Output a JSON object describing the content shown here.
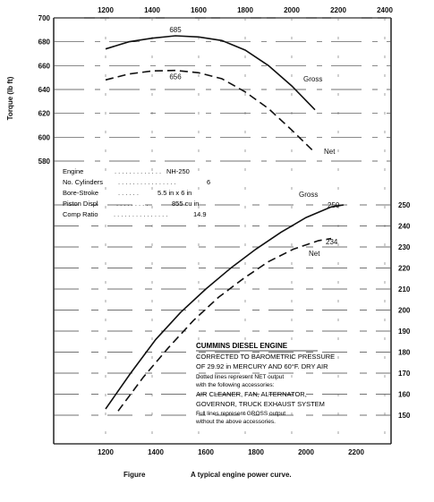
{
  "chart_data": {
    "type": "line",
    "x_ticks_top": [
      "1200",
      "1400",
      "1600",
      "1800",
      "2000",
      "2200",
      "2400"
    ],
    "x_ticks_bottom": [
      "1200",
      "1400",
      "1600",
      "1800",
      "2000",
      "2200"
    ],
    "torque_axis": {
      "label": "Torque (lb ft)",
      "ticks": [
        "700",
        "680",
        "660",
        "640",
        "620",
        "600",
        "580"
      ],
      "range": [
        580,
        700
      ]
    },
    "power_axis": {
      "ticks": [
        "250",
        "240",
        "230",
        "220",
        "210",
        "200",
        "190",
        "180",
        "170",
        "160",
        "150"
      ],
      "range": [
        150,
        250
      ]
    },
    "series": [
      {
        "name": "Gross",
        "axis": "torque",
        "style": "solid",
        "points": [
          [
            1200,
            674
          ],
          [
            1300,
            680
          ],
          [
            1400,
            683
          ],
          [
            1500,
            685
          ],
          [
            1600,
            684
          ],
          [
            1700,
            681
          ],
          [
            1800,
            673
          ],
          [
            1900,
            660
          ],
          [
            2000,
            643
          ],
          [
            2100,
            623
          ]
        ]
      },
      {
        "name": "Net",
        "axis": "torque",
        "style": "dashed",
        "points": [
          [
            1200,
            648
          ],
          [
            1300,
            653
          ],
          [
            1400,
            655.5
          ],
          [
            1500,
            656
          ],
          [
            1600,
            654
          ],
          [
            1700,
            649
          ],
          [
            1800,
            638
          ],
          [
            1900,
            624
          ],
          [
            2000,
            606
          ],
          [
            2100,
            587
          ]
        ]
      },
      {
        "name": "Gross",
        "axis": "power",
        "style": "solid",
        "points": [
          [
            1200,
            153
          ],
          [
            1300,
            170
          ],
          [
            1400,
            186
          ],
          [
            1500,
            199
          ],
          [
            1600,
            210
          ],
          [
            1700,
            220
          ],
          [
            1800,
            229
          ],
          [
            1900,
            237
          ],
          [
            2000,
            244
          ],
          [
            2100,
            249
          ],
          [
            2150,
            250
          ]
        ]
      },
      {
        "name": "Net",
        "axis": "power",
        "style": "dashed",
        "points": [
          [
            1250,
            152
          ],
          [
            1350,
            168
          ],
          [
            1450,
            182
          ],
          [
            1550,
            195
          ],
          [
            1650,
            206
          ],
          [
            1750,
            215
          ],
          [
            1850,
            223
          ],
          [
            1950,
            229
          ],
          [
            2050,
            233
          ],
          [
            2100,
            234
          ]
        ]
      }
    ],
    "annotations": {
      "peak_gross_torque": "685",
      "peak_net_torque": "656",
      "peak_gross_power": "250",
      "peak_net_power": "234",
      "gross_torque_label": "Gross",
      "net_torque_label": "Net",
      "gross_power_label": "Gross",
      "net_power_label": "Net"
    },
    "specs": [
      {
        "label": "Engine",
        "value": "NH-250"
      },
      {
        "label": "No. Cylinders",
        "value": "6"
      },
      {
        "label": "Bore-Stroke",
        "value": "5.5 in x 6 in"
      },
      {
        "label": "Piston Displ",
        "value": "855 cu in"
      },
      {
        "label": "Comp Ratio",
        "value": "14.9"
      }
    ],
    "notes": {
      "title": "CUMMINS DIESEL ENGINE",
      "corrected": "CORRECTED TO BAROMETRIC PRESSURE",
      "corrected2": "OF 29.92 in MERCURY AND 60°F. DRY AIR",
      "dotted": "Dotted lines represent NET output",
      "dotted2": "with the following accessories:",
      "accessories1": "AIR CLEANER, FAN, ALTERNATOR,",
      "accessories2": "GOVERNOR, TRUCK EXHAUST SYSTEM",
      "full": "Full lines represent GROSS output",
      "full2": "without the above accessories."
    },
    "grid": true
  },
  "caption": {
    "figure": "Figure",
    "text": "A typical engine power curve."
  }
}
